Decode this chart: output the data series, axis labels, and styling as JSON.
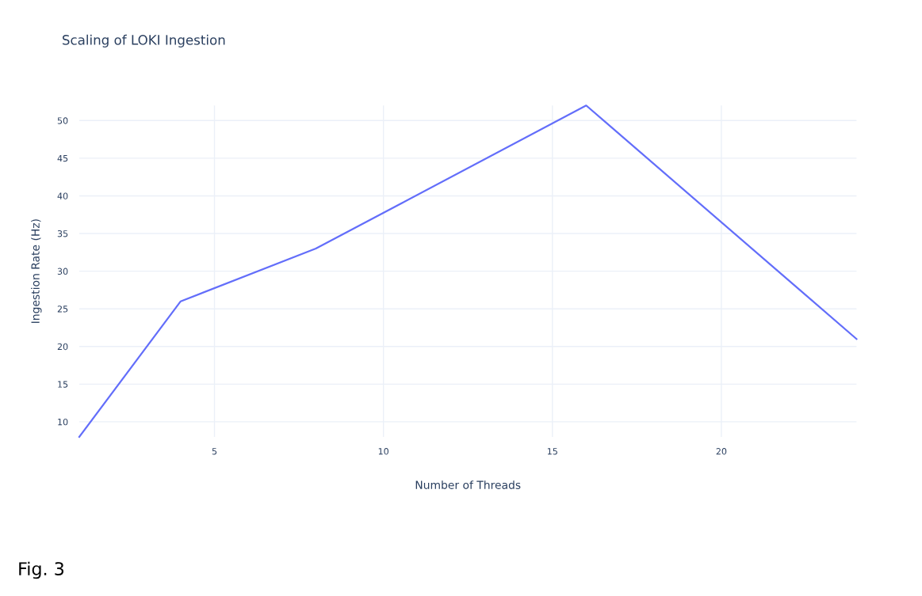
{
  "chart_data": {
    "type": "line",
    "title": "Scaling of LOKI Ingestion",
    "xlabel": "Number of Threads",
    "ylabel": "Ingestion Rate (Hz)",
    "x": [
      1,
      4,
      8,
      16,
      24
    ],
    "series": [
      {
        "color": "#636efa",
        "values": [
          8,
          26,
          33,
          52,
          21
        ]
      }
    ],
    "xlim": [
      1,
      24
    ],
    "xticks": [
      5,
      10,
      15,
      20
    ],
    "ylim": [
      8,
      52
    ],
    "yticks": [
      10,
      15,
      20,
      25,
      30,
      35,
      40,
      45,
      50
    ],
    "grid": true,
    "marker": "none",
    "line_style": "solid",
    "annotations": [
      "Fig. 3"
    ]
  }
}
